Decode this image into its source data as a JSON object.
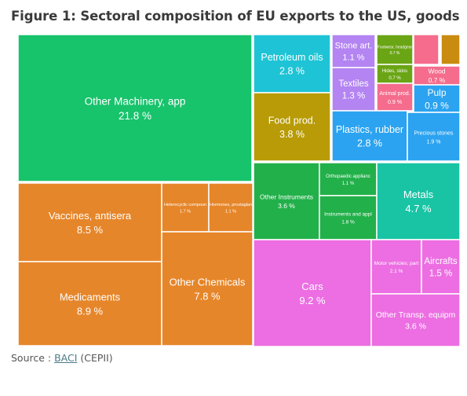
{
  "title": "Figure 1: Sectoral composition of EU exports to the US, goods",
  "source": {
    "prefix": "Source : ",
    "link_text": "BACI",
    "suffix": " (CEPII)"
  },
  "chart_data": {
    "type": "treemap",
    "units": "%",
    "items": [
      {
        "label": "Other Machinery, app",
        "value": "21.8 %",
        "color": "#17c36b"
      },
      {
        "label": "Vaccines, antisera",
        "value": "8.5 %",
        "color": "#e6862a"
      },
      {
        "label": "Heterocyclic compoun",
        "value": "1.7 %",
        "color": "#e6862a"
      },
      {
        "label": "Hormones, prostaglan",
        "value": "1.1 %",
        "color": "#e6862a"
      },
      {
        "label": "Medicaments",
        "value": "8.9 %",
        "color": "#e6862a"
      },
      {
        "label": "Other Chemicals",
        "value": "7.8 %",
        "color": "#e6862a"
      },
      {
        "label": "Petroleum oils",
        "value": "2.8 %",
        "color": "#1ec4d5"
      },
      {
        "label": "Stone art.",
        "value": "1.1 %",
        "color": "#b384f2"
      },
      {
        "label": "Footwear, headgear",
        "value": "0.7 %",
        "color": "#6aa515"
      },
      {
        "label": "Hides, skins",
        "value": "0.7 %",
        "color": "#6aa515"
      },
      {
        "label": "Wood",
        "value": "0.7 %",
        "color": "#f56c8d"
      },
      {
        "label": "Textiles",
        "value": "1.3 %",
        "color": "#b384f2"
      },
      {
        "label": "Animal prod.",
        "value": "0.9 %",
        "color": "#f56c8d"
      },
      {
        "label": "Pulp",
        "value": "0.9 %",
        "color": "#2ba3f0"
      },
      {
        "label": "Food prod.",
        "value": "3.8 %",
        "color": "#b89b06"
      },
      {
        "label": "Plastics, rubber",
        "value": "2.8 %",
        "color": "#2ba3f0"
      },
      {
        "label": "Precious stones",
        "value": "1.9 %",
        "color": "#2ba3f0"
      },
      {
        "label": "Other Instruments",
        "value": "3.6 %",
        "color": "#22b04a"
      },
      {
        "label": "Orthopaedic applianc",
        "value": "1.1 %",
        "color": "#22b04a"
      },
      {
        "label": "Instruments and appl",
        "value": "1.8 %",
        "color": "#22b04a"
      },
      {
        "label": "Metals",
        "value": "4.7 %",
        "color": "#19c4a5"
      },
      {
        "label": "Cars",
        "value": "9.2 %",
        "color": "#ec6ee2"
      },
      {
        "label": "Motor vehicles; part",
        "value": "2.1 %",
        "color": "#ec6ee2"
      },
      {
        "label": "Aircrafts",
        "value": "1.5 %",
        "color": "#ec6ee2"
      },
      {
        "label": "Other Transp. equipm",
        "value": "3.6 %",
        "color": "#ec6ee2"
      },
      {
        "label": "",
        "value": "",
        "color": "#f56c8d"
      },
      {
        "label": "",
        "value": "",
        "color": "#c98c10"
      }
    ]
  }
}
